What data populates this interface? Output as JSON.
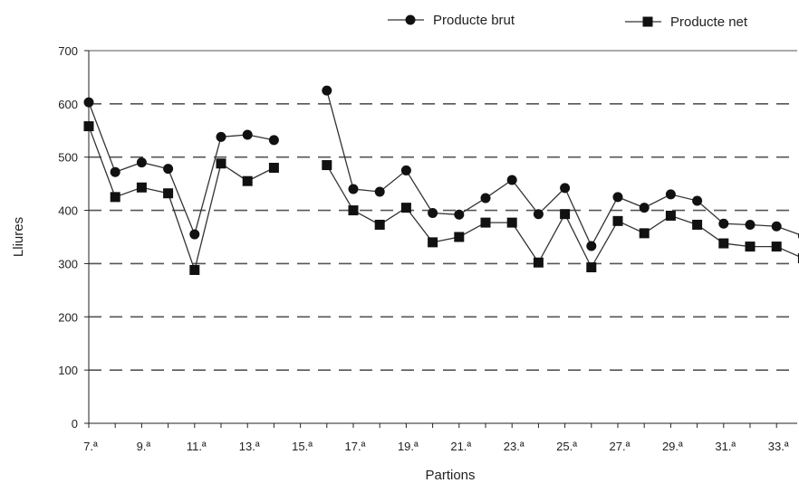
{
  "chart_data": {
    "type": "line",
    "xlabel": "Partions",
    "ylabel": "Lliures",
    "ylim": [
      0,
      700
    ],
    "yticks": [
      0,
      100,
      200,
      300,
      400,
      500,
      600,
      700
    ],
    "grid": "horizontal dashed",
    "legend_position": "top-right",
    "x": [
      7,
      8,
      9,
      10,
      11,
      12,
      13,
      14,
      15,
      16,
      17,
      18,
      19,
      20,
      21,
      22,
      23,
      24,
      25,
      26,
      27,
      28,
      29,
      30,
      31,
      32,
      33,
      34
    ],
    "xtick_labels": [
      "7.ª",
      "9.ª",
      "11.ª",
      "13.ª",
      "15.ª",
      "17.ª",
      "19.ª",
      "21.ª",
      "23.ª",
      "25.ª",
      "27.ª",
      "29.ª",
      "31.ª",
      "33.ª"
    ],
    "series": [
      {
        "name": "Producte brut",
        "marker": "circle",
        "values": [
          603,
          472,
          490,
          478,
          355,
          538,
          542,
          532,
          null,
          625,
          440,
          435,
          475,
          395,
          392,
          423,
          457,
          393,
          442,
          333,
          425,
          405,
          430,
          418,
          375,
          373,
          370,
          352
        ]
      },
      {
        "name": "Producte net",
        "marker": "square",
        "values": [
          558,
          425,
          443,
          432,
          288,
          488,
          455,
          480,
          null,
          485,
          400,
          373,
          405,
          340,
          350,
          377,
          377,
          302,
          393,
          293,
          380,
          357,
          390,
          373,
          338,
          332,
          332,
          310
        ]
      }
    ],
    "colors": {
      "line": "#333333",
      "grid": "#555555",
      "axis": "#222222"
    }
  }
}
